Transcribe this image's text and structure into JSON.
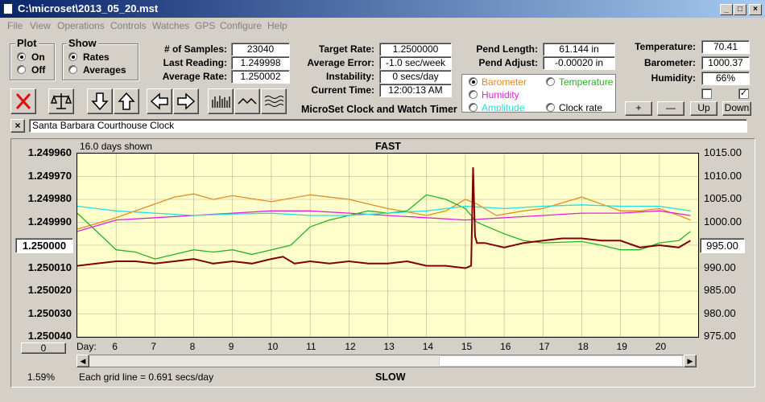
{
  "window": {
    "title": "C:\\microset\\2013_05_20.mst"
  },
  "menu": [
    "File",
    "View",
    "Operations",
    "Controls",
    "Watches",
    "GPS",
    "Configure",
    "Help"
  ],
  "plot_group": {
    "label": "Plot",
    "on": "On",
    "off": "Off",
    "selected": "On"
  },
  "show_group": {
    "label": "Show",
    "rates": "Rates",
    "averages": "Averages",
    "selected": "Rates"
  },
  "samples": {
    "label": "# of Samples:",
    "value": "23040"
  },
  "last_reading": {
    "label": "Last Reading:",
    "value": "1.249998"
  },
  "average_rate": {
    "label": "Average Rate:",
    "value": "1.250002"
  },
  "target_rate": {
    "label": "Target Rate:",
    "value": "1.2500000"
  },
  "average_error": {
    "label": "Average Error:",
    "value": "-1.0 sec/week"
  },
  "instability": {
    "label": "Instability:",
    "value": "0 secs/day"
  },
  "current_time": {
    "label": "Current Time:",
    "value": "12:00:13 AM"
  },
  "pend_length": {
    "label": "Pend Length:",
    "value": "61.144 in"
  },
  "pend_adjust": {
    "label": "Pend Adjust:",
    "value": "-0.00020 in"
  },
  "temperature": {
    "label": "Temperature:",
    "value": "70.41"
  },
  "barometer": {
    "label": "Barometer:",
    "value": "1000.37"
  },
  "humidity": {
    "label": "Humidity:",
    "value": "66%"
  },
  "caption": "MicroSet Clock and Watch Timer",
  "series_select": {
    "barometer": "Barometer",
    "temperature": "Temperature",
    "humidity": "Humidity",
    "amplitude": "Amplitude",
    "clock_rate": "Clock rate",
    "selected": "Barometer"
  },
  "adjust_buttons": {
    "plus": "+",
    "minus": "—",
    "up": "Up",
    "down": "Down"
  },
  "watch_name": "Santa Barbara Courthouse Clock",
  "chart_header": {
    "days_shown": "16.0 days shown",
    "top": "FAST",
    "bottom": "SLOW",
    "grid_note": "Each grid line = 0.691 secs/day",
    "percent": "1.59%"
  },
  "left_box": "1.250000",
  "right_box": "995.00",
  "bottom_box": "0",
  "colors": {
    "barometer": "#e38b1f",
    "temperature": "#22b422",
    "humidity": "#e020e0",
    "amplitude": "#20e0e0",
    "clock_rate": "#800000",
    "plot_bg": "#ffffcc"
  },
  "chart_data": {
    "type": "line",
    "xlabel": "Day:",
    "x_ticks": [
      6,
      7,
      8,
      9,
      10,
      11,
      12,
      13,
      14,
      15,
      16,
      17,
      18,
      19,
      20
    ],
    "xlim": [
      5,
      21
    ],
    "y_left_ticks": [
      "1.249960",
      "1.249970",
      "1.249980",
      "1.249990",
      "1.250000",
      "1.250010",
      "1.250020",
      "1.250030",
      "1.250040"
    ],
    "y_left_range": [
      1.24996,
      1.25004
    ],
    "y_right_ticks": [
      "1015.00",
      "1010.00",
      "1005.00",
      "1000.00",
      "995.00",
      "990.00",
      "985.00",
      "980.00",
      "975.00"
    ],
    "y_right_range": [
      1015,
      975
    ],
    "series": [
      {
        "name": "Barometer",
        "key": "barometer",
        "axis": "right",
        "x": [
          5.0,
          6.0,
          7.0,
          7.5,
          8.0,
          8.5,
          9.0,
          10.0,
          11.0,
          12.0,
          13.0,
          14.0,
          14.5,
          15.0,
          15.3,
          15.8,
          16.5,
          17.0,
          18.0,
          18.5,
          19.0,
          19.5,
          20.0,
          20.5,
          20.8
        ],
        "y": [
          998.5,
          1001.0,
          1004.0,
          1005.5,
          1006.2,
          1005.0,
          1005.8,
          1004.5,
          1006.0,
          1005.0,
          1003.0,
          1001.5,
          1002.5,
          1005.0,
          1004.0,
          1001.5,
          1002.5,
          1003.0,
          1005.5,
          1004.0,
          1002.5,
          1002.5,
          1003.0,
          1001.5,
          1000.5
        ]
      },
      {
        "name": "Temperature",
        "key": "temperature",
        "axis": "right",
        "x": [
          5.0,
          5.5,
          6.0,
          6.5,
          7.0,
          7.5,
          8.0,
          8.5,
          9.0,
          9.5,
          10.0,
          10.5,
          11.0,
          11.5,
          12.0,
          12.5,
          13.0,
          13.5,
          14.0,
          14.5,
          15.0,
          15.3,
          16.0,
          16.5,
          17.0,
          18.0,
          18.5,
          19.0,
          19.5,
          20.0,
          20.5,
          20.8
        ],
        "y": [
          1002.0,
          998.0,
          994.0,
          993.5,
          992.0,
          993.0,
          994.0,
          993.5,
          994.0,
          993.0,
          994.0,
          995.0,
          999.0,
          1000.5,
          1001.5,
          1002.5,
          1002.0,
          1002.5,
          1006.0,
          1005.0,
          1003.0,
          1000.0,
          997.5,
          996.0,
          995.5,
          995.8,
          995.0,
          994.0,
          994.0,
          995.5,
          996.0,
          998.0
        ]
      },
      {
        "name": "Humidity",
        "key": "humidity",
        "axis": "right",
        "x": [
          5.0,
          6.0,
          7.0,
          8.0,
          9.0,
          10.0,
          11.0,
          12.0,
          13.0,
          14.0,
          15.0,
          16.0,
          17.0,
          18.0,
          19.0,
          20.0,
          20.8
        ],
        "y": [
          998.0,
          1000.5,
          1001.0,
          1001.5,
          1002.0,
          1002.5,
          1002.5,
          1002.0,
          1001.5,
          1001.0,
          1000.5,
          1001.0,
          1001.5,
          1002.0,
          1002.0,
          1002.5,
          1001.5
        ]
      },
      {
        "name": "Amplitude",
        "key": "amplitude",
        "axis": "right",
        "x": [
          5.0,
          6.0,
          7.0,
          8.0,
          9.0,
          10.0,
          11.0,
          12.0,
          13.0,
          14.0,
          15.0,
          16.0,
          17.0,
          18.0,
          19.0,
          20.0,
          20.8
        ],
        "y": [
          1003.5,
          1002.5,
          1002.0,
          1001.5,
          1001.8,
          1002.0,
          1001.5,
          1001.5,
          1002.0,
          1002.5,
          1003.5,
          1003.0,
          1003.5,
          1003.8,
          1003.5,
          1003.5,
          1002.5
        ]
      },
      {
        "name": "Clock rate",
        "key": "clock_rate",
        "axis": "left",
        "x": [
          5.0,
          5.5,
          6.0,
          6.5,
          7.0,
          7.5,
          8.0,
          8.5,
          9.0,
          9.5,
          10.0,
          10.3,
          10.6,
          11.0,
          11.5,
          12.0,
          12.5,
          13.0,
          13.5,
          14.0,
          14.5,
          15.0,
          15.15,
          15.2,
          15.25,
          15.3,
          15.5,
          16.0,
          16.5,
          17.0,
          17.5,
          18.0,
          18.5,
          19.0,
          19.5,
          20.0,
          20.5,
          20.8
        ],
        "y": [
          1.250009,
          1.250008,
          1.250007,
          1.250007,
          1.250008,
          1.250007,
          1.250006,
          1.250008,
          1.250007,
          1.250008,
          1.250006,
          1.250005,
          1.250008,
          1.250007,
          1.250008,
          1.250007,
          1.250008,
          1.250008,
          1.250007,
          1.250009,
          1.250009,
          1.25001,
          1.250009,
          1.249966,
          1.249996,
          1.249999,
          1.249999,
          1.250001,
          1.249999,
          1.249998,
          1.249997,
          1.249997,
          1.249998,
          1.249998,
          1.250001,
          1.25,
          1.250001,
          1.249998
        ]
      }
    ]
  }
}
